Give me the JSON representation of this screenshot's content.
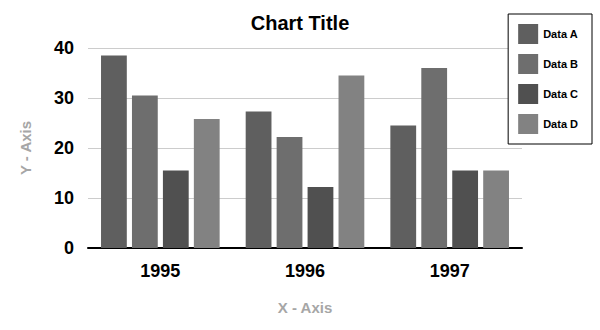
{
  "chart_data": {
    "type": "bar",
    "title": "Chart Title",
    "x_label": "X - Axis",
    "y_label": "Y - Axis",
    "categories": [
      "1995",
      "1996",
      "1997"
    ],
    "series": [
      {
        "name": "Data A",
        "color": "#5f5f5f",
        "values": [
          38.5,
          27.3,
          24.5
        ]
      },
      {
        "name": "Data B",
        "color": "#6e6e6e",
        "values": [
          30.5,
          22.2,
          36.0
        ]
      },
      {
        "name": "Data C",
        "color": "#505050",
        "values": [
          15.5,
          12.2,
          15.5
        ]
      },
      {
        "name": "Data D",
        "color": "#828282",
        "values": [
          25.8,
          34.5,
          15.5
        ]
      }
    ],
    "ylim": [
      0,
      40
    ],
    "yticks": [
      0,
      10,
      20,
      30,
      40
    ],
    "grid": true,
    "legend": "top-right"
  }
}
